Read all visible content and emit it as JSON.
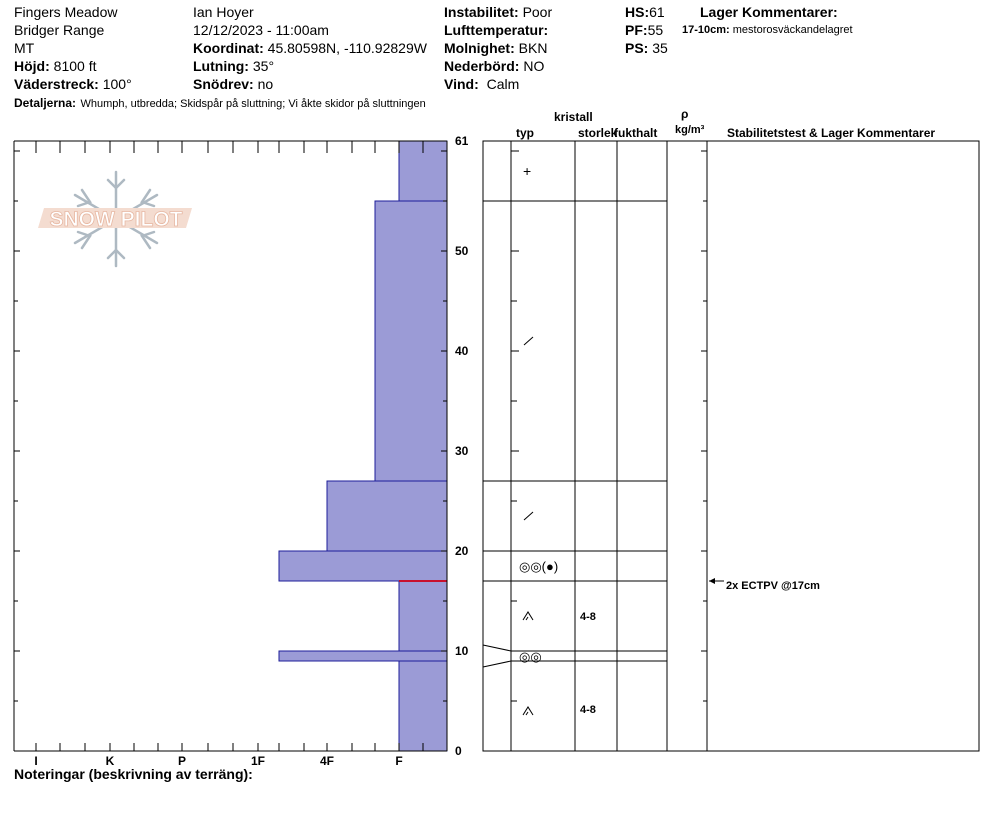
{
  "header": {
    "location": "Fingers Meadow",
    "range": "Bridger Range",
    "state": "MT",
    "elevation_label": "Höjd:",
    "elevation": "8100 ft",
    "aspect_label": "Väderstreck:",
    "aspect": "100°",
    "observer": "Ian Hoyer",
    "datetime": "12/12/2023 - 11:00am",
    "coord_label": "Koordinat:",
    "coord": "45.80598N, -110.92829W",
    "slope_label": "Lutning:",
    "slope": "35°",
    "wind_loading_label": "Snödrev:",
    "wind_loading": "no",
    "instability_label": "Instabilitet:",
    "instability": "Poor",
    "airtemp_label": "Lufttemperatur:",
    "airtemp": "",
    "sky_label": "Molnighet:",
    "sky": "BKN",
    "precip_label": "Nederbörd:",
    "precip": "NO",
    "wind_label": "Vind:",
    "wind": "Calm",
    "hs_label": "HS:",
    "hs": "61",
    "pf_label": "PF:",
    "pf": "55",
    "ps_label": "PS:",
    "ps": "35",
    "layer_comments_title": "Lager Kommentarer:",
    "layer_comment_depth": "17-10cm:",
    "layer_comment_text": "mestorosväckandelagret",
    "details_label": "Detaljerna:",
    "details": "Whumph, utbredda;  Skidspår på sluttning;  Vi åkte skidor på sluttningen"
  },
  "logo_text": "SNOW PILOT",
  "notes_label": "Noteringar (beskrivning av terräng):",
  "columns": {
    "kristall": "kristall",
    "typ": "typ",
    "storlek": "storlek",
    "fukthalt": "fukthalt",
    "rho": "ρ",
    "density_unit": "kg/m³",
    "stability": "Stabilitetstest & Lager Kommentarer"
  },
  "stability_test": {
    "depth": 17,
    "label": "2x ECTPV @17cm"
  },
  "chart_data": {
    "type": "bar",
    "title": "",
    "y_axis": {
      "range": [
        0,
        61
      ],
      "ticks": [
        0,
        10,
        20,
        30,
        40,
        50,
        61
      ],
      "unit": "cm"
    },
    "x_axis": {
      "categories": [
        "I",
        "K",
        "P",
        "1F",
        "4F",
        "F"
      ]
    },
    "colors": {
      "fill": "#9b9bd6",
      "stroke": "#1e1e99",
      "weak_layer": "#c8102e"
    },
    "layers": [
      {
        "top": 61,
        "bottom": 55,
        "hardness": "F",
        "crystal": "PP",
        "size": ""
      },
      {
        "top": 55,
        "bottom": 27,
        "hardness": "F+",
        "crystal": "DF",
        "size": ""
      },
      {
        "top": 27,
        "bottom": 20,
        "hardness": "4F",
        "crystal": "DF",
        "size": ""
      },
      {
        "top": 20,
        "bottom": 17,
        "hardness": "1F-",
        "crystal": "MFcr",
        "size": ""
      },
      {
        "top": 17,
        "bottom": 10,
        "hardness": "F",
        "crystal": "FC",
        "size": "4-8"
      },
      {
        "top": 10,
        "bottom": 9,
        "hardness": "1F-",
        "crystal": "MFcr",
        "size": ""
      },
      {
        "top": 9,
        "bottom": 0,
        "hardness": "F",
        "crystal": "FC",
        "size": "4-8"
      }
    ],
    "weak_layer_depth": 17,
    "layer_symbols": [
      {
        "depth": 58,
        "symbol": "+"
      },
      {
        "depth": 41,
        "symbol": "/"
      },
      {
        "depth": 23.5,
        "symbol": "/"
      },
      {
        "depth": 18.5,
        "symbol": "◎◎(●)"
      },
      {
        "depth": 13.5,
        "symbol": "ʌ",
        "size": "4-8"
      },
      {
        "depth": 9.5,
        "symbol": "◎◎"
      },
      {
        "depth": 4,
        "symbol": "ʌ",
        "size": "4-8"
      }
    ]
  }
}
